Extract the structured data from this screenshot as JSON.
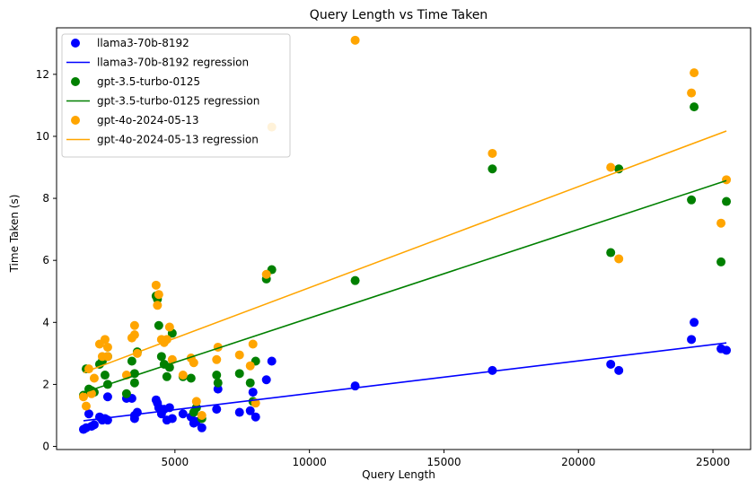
{
  "chart_data": {
    "type": "scatter",
    "title": "Query Length vs Time Taken",
    "xlabel": "Query Length",
    "ylabel": "Time Taken (s)",
    "xlim": [
      600,
      26400
    ],
    "ylim": [
      -0.1,
      13.5
    ],
    "xticks": [
      5000,
      10000,
      15000,
      20000,
      25000
    ],
    "xtick_labels": [
      "5000",
      "10000",
      "15000",
      "20000",
      "25000"
    ],
    "yticks": [
      0,
      2,
      4,
      6,
      8,
      10,
      12
    ],
    "ytick_labels": [
      "0",
      "2",
      "4",
      "6",
      "8",
      "10",
      "12"
    ],
    "legend_position": "top-left",
    "x": [
      1600,
      1700,
      1800,
      1900,
      2000,
      2200,
      2300,
      2400,
      2500,
      2500,
      3200,
      3400,
      3500,
      3500,
      3600,
      4300,
      4350,
      4400,
      4500,
      4600,
      4700,
      4800,
      4900,
      5300,
      5600,
      5700,
      5800,
      6000,
      6550,
      6600,
      7400,
      7800,
      7900,
      8000,
      8400,
      8600,
      11700,
      16800,
      21200,
      21500,
      24200,
      24300,
      25300,
      25500
    ],
    "series": [
      {
        "name": "llama3-70b-8192",
        "regression_name": "llama3-70b-8192 regression",
        "color": "#0000ff",
        "values": [
          0.55,
          0.6,
          1.05,
          0.65,
          0.7,
          0.95,
          0.85,
          0.9,
          1.6,
          0.85,
          1.55,
          1.55,
          1.0,
          0.9,
          1.1,
          1.5,
          1.4,
          1.25,
          1.05,
          1.2,
          0.85,
          1.25,
          0.9,
          1.05,
          0.95,
          0.75,
          0.8,
          0.6,
          1.2,
          1.85,
          1.1,
          1.15,
          1.75,
          0.95,
          2.15,
          2.75,
          1.95,
          2.45,
          2.65,
          2.45,
          3.45,
          4.0,
          3.15,
          3.1
        ],
        "regression": {
          "slope": 0.000105,
          "intercept": 0.66,
          "x_range": [
            1600,
            25500
          ]
        }
      },
      {
        "name": "gpt-3.5-turbo-0125",
        "regression_name": "gpt-3.5-turbo-0125 regression",
        "color": "#008000",
        "values": [
          1.65,
          2.5,
          1.85,
          1.8,
          1.75,
          2.65,
          2.75,
          2.3,
          2.0,
          2.9,
          1.7,
          2.75,
          2.35,
          2.05,
          3.05,
          4.85,
          4.75,
          3.9,
          2.9,
          2.65,
          2.25,
          2.55,
          3.65,
          2.25,
          2.2,
          1.1,
          1.25,
          0.9,
          2.3,
          2.05,
          2.35,
          2.05,
          1.45,
          2.75,
          5.4,
          5.7,
          5.35,
          8.95,
          6.25,
          8.95,
          7.95,
          10.95,
          5.95,
          7.9
        ],
        "regression": {
          "slope": 0.000286,
          "intercept": 1.28,
          "x_range": [
            1600,
            25500
          ]
        }
      },
      {
        "name": "gpt-4o-2024-05-13",
        "regression_name": "gpt-4o-2024-05-13 regression",
        "color": "#ffa500",
        "values": [
          1.6,
          1.3,
          2.5,
          1.7,
          2.2,
          3.3,
          2.9,
          3.45,
          3.2,
          2.9,
          2.3,
          3.5,
          3.9,
          3.6,
          3.0,
          5.2,
          4.55,
          4.9,
          3.45,
          3.35,
          3.45,
          3.85,
          2.8,
          2.3,
          2.85,
          2.7,
          1.45,
          1.0,
          2.8,
          3.2,
          2.95,
          2.6,
          3.3,
          1.4,
          5.55,
          10.3,
          13.1,
          9.45,
          9.0,
          6.05,
          11.4,
          12.05,
          7.2,
          8.6
        ],
        "regression": {
          "slope": 0.000326,
          "intercept": 1.86,
          "x_range": [
            1600,
            25500
          ]
        }
      }
    ]
  }
}
